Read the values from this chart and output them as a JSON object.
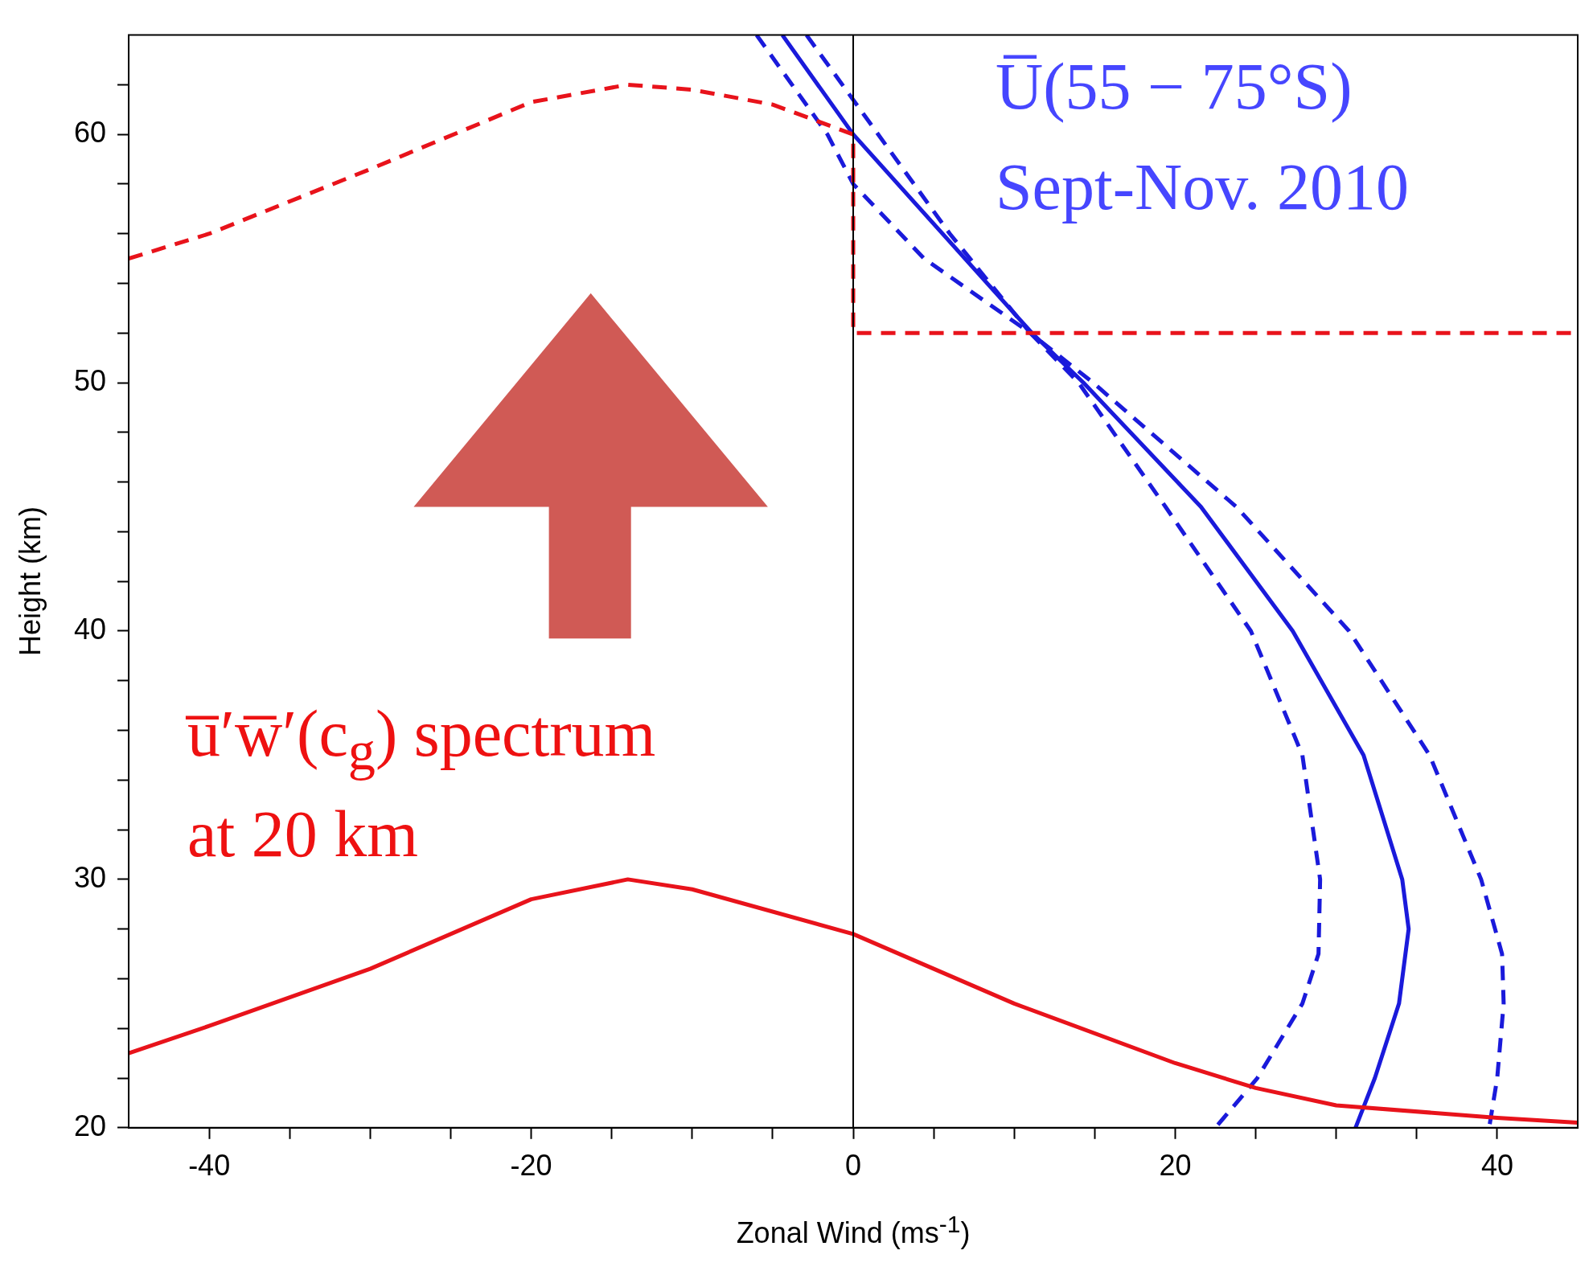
{
  "chart_data": {
    "type": "line",
    "xlabel": "Zonal Wind (ms$^{-1}$)",
    "ylabel": "Height (km)",
    "xlim": [
      -45,
      45
    ],
    "ylim": [
      20,
      64
    ],
    "xticks": [
      {
        "value": -40,
        "label": "-40"
      },
      {
        "value": -35,
        "label": null
      },
      {
        "value": -30,
        "label": null
      },
      {
        "value": -25,
        "label": null
      },
      {
        "value": -20,
        "label": "-20"
      },
      {
        "value": -15,
        "label": null
      },
      {
        "value": -10,
        "label": null
      },
      {
        "value": -5,
        "label": null
      },
      {
        "value": 0,
        "label": "0"
      },
      {
        "value": 5,
        "label": null
      },
      {
        "value": 10,
        "label": null
      },
      {
        "value": 15,
        "label": null
      },
      {
        "value": 20,
        "label": "20"
      },
      {
        "value": 25,
        "label": null
      },
      {
        "value": 30,
        "label": null
      },
      {
        "value": 35,
        "label": null
      },
      {
        "value": 40,
        "label": "40"
      }
    ],
    "yticks": [
      20,
      {
        "value": 22,
        "label": null
      },
      {
        "value": 24,
        "label": null
      },
      {
        "value": 26,
        "label": null
      },
      {
        "value": 28,
        "label": null
      },
      30,
      {
        "value": 32,
        "label": null
      },
      {
        "value": 34,
        "label": null
      },
      {
        "value": 36,
        "label": null
      },
      {
        "value": 38,
        "label": null
      },
      40,
      {
        "value": 42,
        "label": null
      },
      {
        "value": 44,
        "label": null
      },
      {
        "value": 46,
        "label": null
      },
      {
        "value": 48,
        "label": null
      },
      50,
      {
        "value": 52,
        "label": null
      },
      {
        "value": 54,
        "label": null
      },
      {
        "value": 56,
        "label": null
      },
      {
        "value": 58,
        "label": null
      },
      60,
      {
        "value": 62,
        "label": null
      }
    ],
    "grid": false,
    "legend": false,
    "marker": "none",
    "series": [
      {
        "color": "#e8131b",
        "line_style": "solid",
        "x": [
          -45,
          -40,
          -30,
          -20,
          -14,
          -10,
          0,
          10,
          20,
          25,
          30,
          40,
          45
        ],
        "values": [
          23.0,
          24.1,
          26.4,
          29.2,
          30,
          29.6,
          27.8,
          25.0,
          22.6,
          21.6,
          20.9,
          20.4,
          20.2
        ]
      },
      {
        "color": "#e8131b",
        "line_style": "dashed",
        "x": [
          -45,
          -40,
          -30,
          -20,
          -14,
          -10,
          -5,
          0,
          0,
          45
        ],
        "values": [
          55,
          56,
          58.6,
          61.3,
          62,
          61.8,
          61.2,
          60,
          52,
          52
        ]
      },
      {
        "color": "#1a1adb",
        "line_style": "solid",
        "x": [
          -4.4,
          0,
          11.1,
          14.3,
          21.6,
          27.3,
          31.7,
          34.1,
          34.5,
          33.9,
          32.4,
          31.2
        ],
        "values": [
          64,
          60,
          52,
          50,
          45,
          40,
          35,
          30,
          28,
          25,
          22,
          20
        ]
      },
      {
        "color": "#1a1adb",
        "line_style": "dashed",
        "x": [
          -2.9,
          6,
          11,
          14.9,
          23.8,
          30.8,
          35.8,
          39,
          40.3,
          40.4,
          40,
          39.5
        ],
        "values": [
          64,
          56,
          52,
          50,
          45,
          40,
          35,
          30,
          27,
          25,
          22,
          20
        ]
      },
      {
        "color": "#1a1adb",
        "line_style": "dashed",
        "x": [
          -6,
          -1.6,
          0,
          4.4,
          11,
          14,
          19.4,
          24.7,
          27.9,
          29,
          28.9,
          27.9,
          25.1,
          22.5
        ],
        "values": [
          64,
          60,
          58,
          55,
          52,
          50,
          45,
          40,
          35,
          30,
          27,
          25,
          22,
          20
        ]
      }
    ],
    "ref_lines": [
      {
        "axis": "x",
        "value": 0,
        "color": "#000000"
      }
    ],
    "annotations": [
      "U̅(55 − 75°S)",
      "Sept-Nov. 2010",
      "u̅′w̅′(c$_{g}$) spectrum",
      "at 20 km"
    ]
  }
}
